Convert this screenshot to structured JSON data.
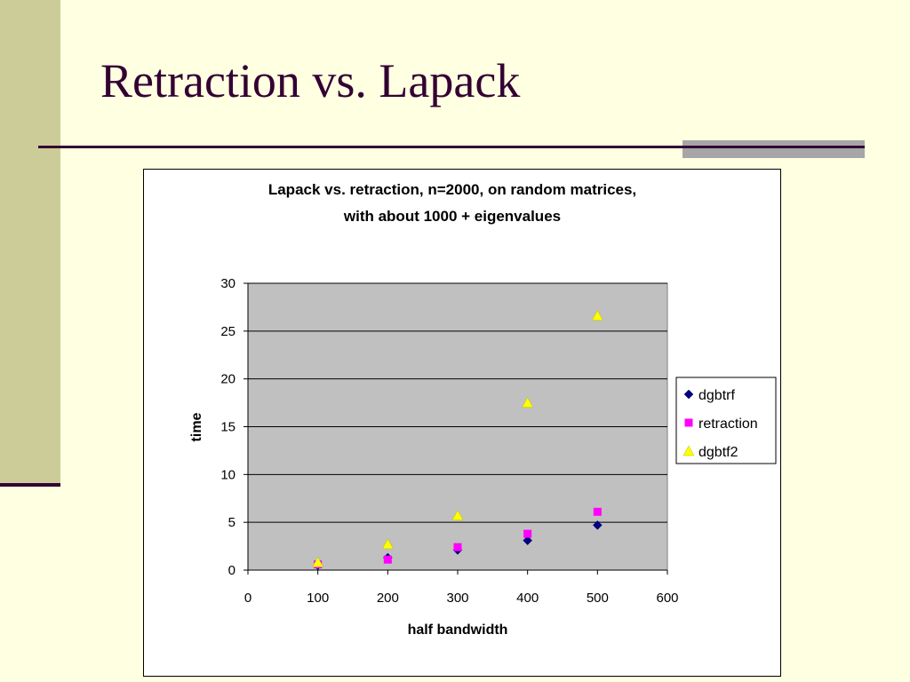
{
  "slide": {
    "title": "Retraction vs. Lapack",
    "colors": {
      "background": "#FFFFE1",
      "left_band": "#CCCC99",
      "title_text": "#330033",
      "rule": "#330033",
      "accent": "#A6A6A6"
    }
  },
  "chart_data": {
    "type": "scatter",
    "title_lines": [
      "Lapack vs. retraction, n=2000, on random matrices,",
      "with about 1000 + eigenvalues"
    ],
    "xlabel": "half bandwidth",
    "ylabel": "time",
    "xlim": [
      0,
      600
    ],
    "ylim": [
      0,
      30
    ],
    "xticks": [
      0,
      100,
      200,
      300,
      400,
      500,
      600
    ],
    "yticks": [
      0,
      5,
      10,
      15,
      20,
      25,
      30
    ],
    "grid": "horizontal",
    "plot_background": "#C0C0C0",
    "legend_position": "right",
    "series": [
      {
        "name": "dgbtrf",
        "marker": "diamond",
        "color": "#000080",
        "x": [
          100,
          200,
          300,
          400,
          500
        ],
        "y": [
          0.5,
          1.3,
          2.1,
          3.1,
          4.7
        ]
      },
      {
        "name": "retraction",
        "marker": "square",
        "color": "#FF00FF",
        "x": [
          100,
          200,
          300,
          400,
          500
        ],
        "y": [
          0.6,
          1.1,
          2.4,
          3.8,
          6.1
        ]
      },
      {
        "name": "dgbtf2",
        "marker": "triangle",
        "color": "#FFFF00",
        "x": [
          100,
          200,
          300,
          400,
          500
        ],
        "y": [
          0.8,
          2.7,
          5.7,
          17.5,
          26.6
        ]
      }
    ]
  }
}
